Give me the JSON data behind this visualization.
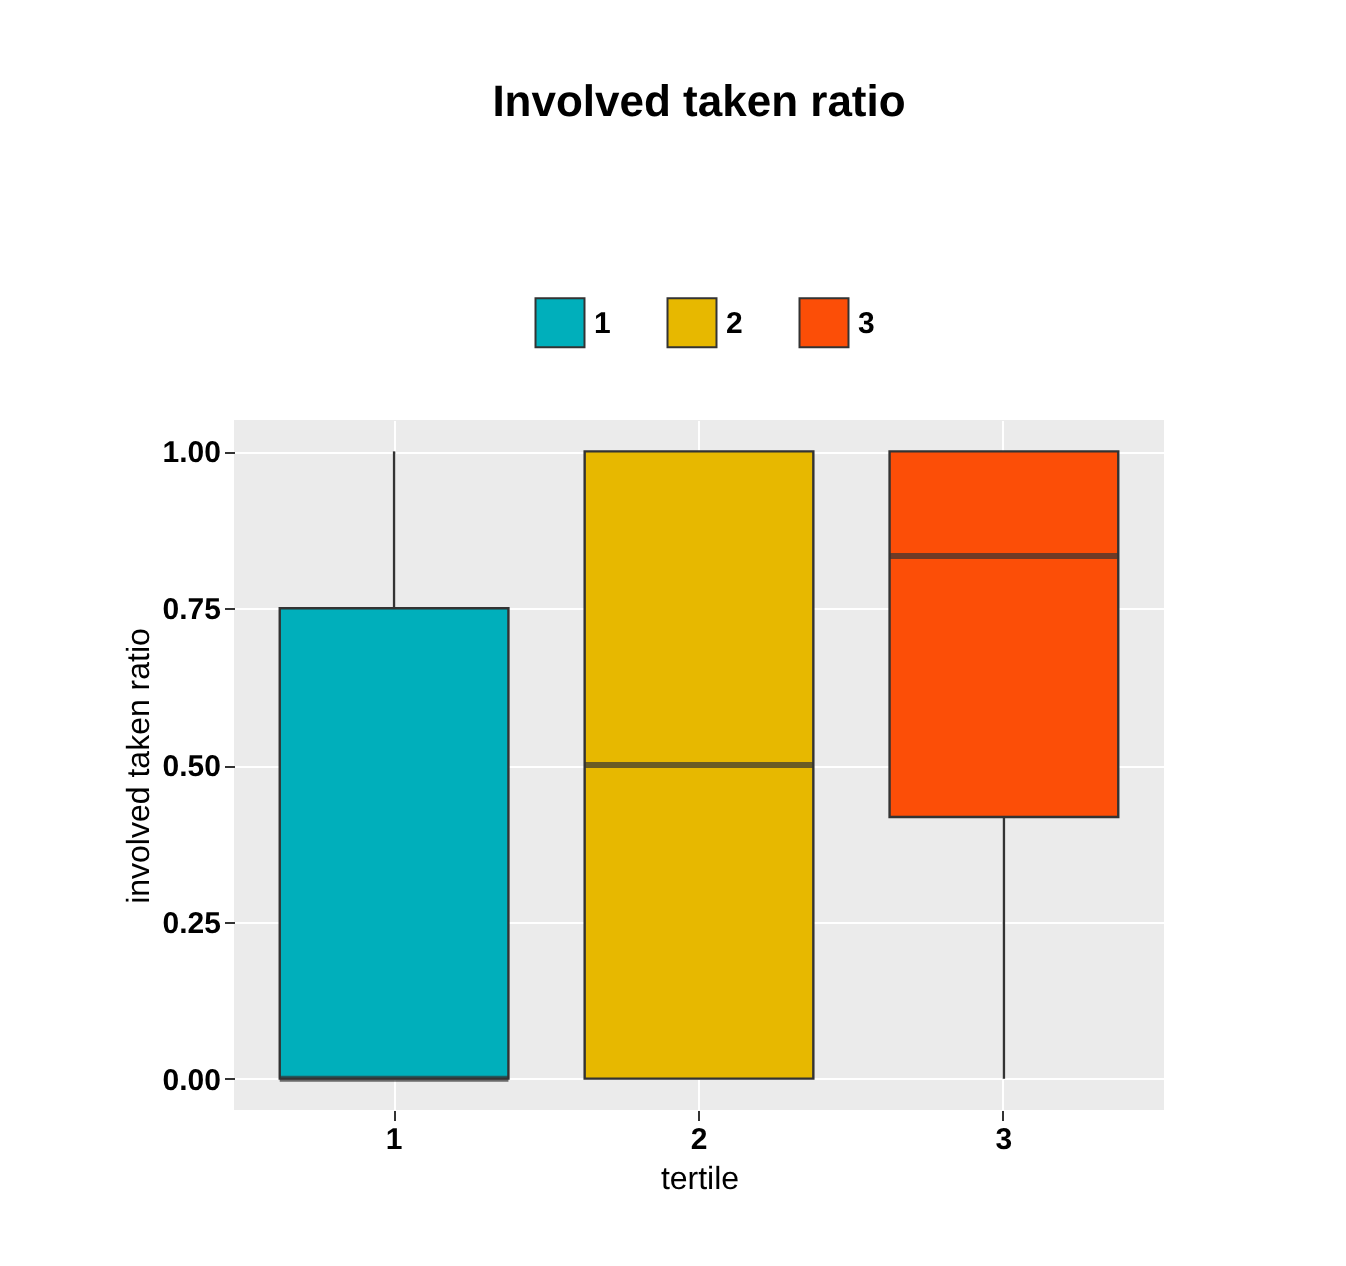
{
  "chart_data": {
    "type": "box",
    "title": "Involved taken ratio",
    "xlabel": "tertile",
    "ylabel": "involved taken ratio",
    "categories": [
      "1",
      "2",
      "3"
    ],
    "series": [
      {
        "name": "1",
        "color": "#00afbb",
        "boxes": [
          {
            "low": 0,
            "q1": 0,
            "median": 0,
            "q3": 0.75,
            "high": 1
          },
          null,
          null
        ]
      },
      {
        "name": "2",
        "color": "#e7b800",
        "boxes": [
          null,
          {
            "low": 0,
            "q1": 0,
            "median": 0.5,
            "q3": 1,
            "high": 1
          },
          null
        ]
      },
      {
        "name": "3",
        "color": "#fc4e07",
        "boxes": [
          null,
          null,
          {
            "low": 0,
            "q1": 0.417,
            "median": 0.833,
            "q3": 1,
            "high": 1
          }
        ]
      }
    ],
    "ylim": [
      -0.05,
      1.05
    ],
    "yticks": [
      {
        "value": 0,
        "label": "0.00"
      },
      {
        "value": 0.25,
        "label": "0.25"
      },
      {
        "value": 0.5,
        "label": "0.50"
      },
      {
        "value": 0.75,
        "label": "0.75"
      },
      {
        "value": 1,
        "label": "1.00"
      }
    ],
    "grid": true,
    "legend": "top"
  }
}
